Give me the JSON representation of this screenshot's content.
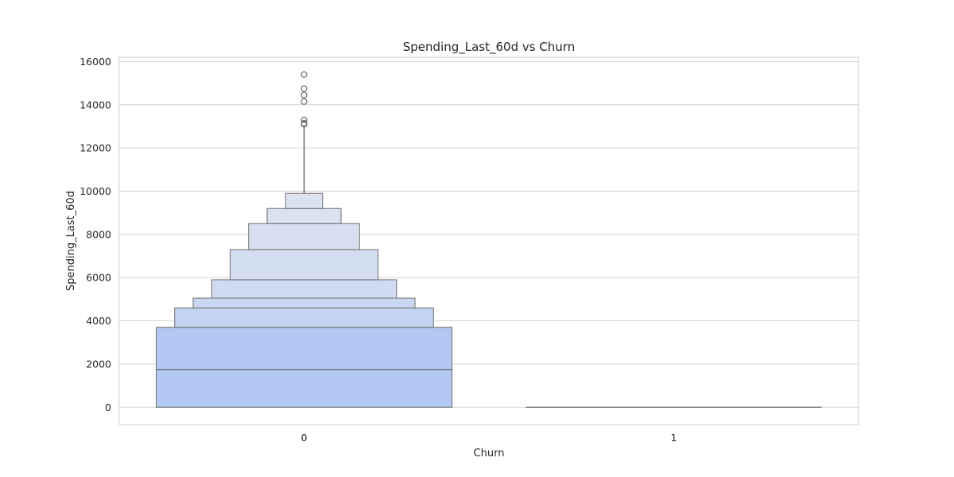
{
  "chart_data": {
    "type": "boxen",
    "title": "Spending_Last_60d vs Churn",
    "xlabel": "Churn",
    "ylabel": "Spending_Last_60d",
    "categories": [
      "0",
      "1"
    ],
    "ylim": [
      -800,
      16200
    ],
    "yticks": [
      0,
      2000,
      4000,
      6000,
      8000,
      10000,
      12000,
      14000,
      16000
    ],
    "grid": true,
    "colors": [
      "#b3c8f3",
      "#c4d4f3",
      "#cad7f2",
      "#d0dbf1",
      "#d4def1",
      "#d7e0f0",
      "#dae2f0",
      "#dce3f0"
    ],
    "groups": [
      {
        "category": "0",
        "median": 1750,
        "letter_values": [
          {
            "low": 0,
            "high": 3700
          },
          {
            "low": 3700,
            "high": 4600
          },
          {
            "low": 4600,
            "high": 5050
          },
          {
            "low": 5050,
            "high": 5900
          },
          {
            "low": 5900,
            "high": 7300
          },
          {
            "low": 7300,
            "high": 8500
          },
          {
            "low": 8500,
            "high": 9200
          },
          {
            "low": 9200,
            "high": 9900
          }
        ],
        "whisker_high": 13000,
        "outliers": [
          13100,
          13150,
          13300,
          14150,
          14450,
          14750,
          15400
        ]
      },
      {
        "category": "1",
        "median": 0,
        "letter_values": [
          {
            "low": 0,
            "high": 0
          }
        ],
        "whisker_high": 0,
        "outliers": []
      }
    ]
  }
}
